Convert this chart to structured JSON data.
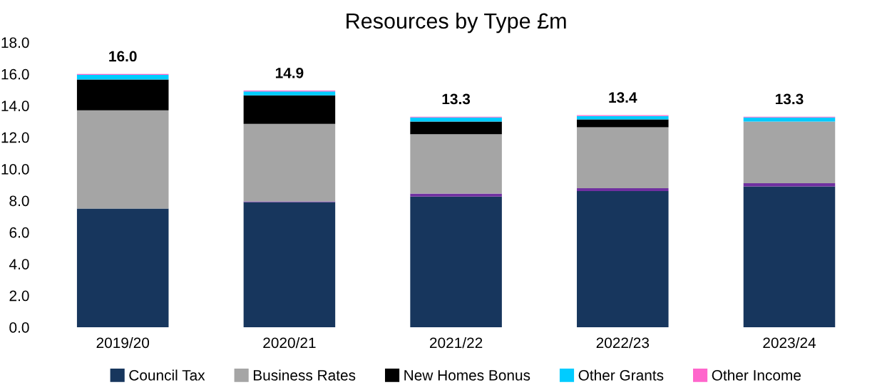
{
  "chart_data": {
    "type": "bar",
    "title": "Resources by Type £m",
    "stacked": true,
    "categories": [
      "2019/20",
      "2020/21",
      "2021/22",
      "2022/23",
      "2023/24"
    ],
    "series": [
      {
        "name": "Council Tax",
        "color": "#17365d",
        "values": [
          7.5,
          7.9,
          8.25,
          8.6,
          8.9
        ]
      },
      {
        "color": "#7030a0",
        "values": [
          0,
          0.05,
          0.2,
          0.18,
          0.2
        ]
      },
      {
        "name": "Business Rates",
        "color": "#a5a5a5",
        "values": [
          6.2,
          4.9,
          3.75,
          3.85,
          3.9
        ]
      },
      {
        "name": "New Homes Bonus",
        "color": "#000000",
        "values": [
          1.95,
          1.8,
          0.8,
          0.5,
          0
        ]
      },
      {
        "name": "Other Grants",
        "color": "#00ccff",
        "values": [
          0.3,
          0.25,
          0.25,
          0.22,
          0.25
        ]
      },
      {
        "name": "Other Income",
        "color": "#ff66cc",
        "values": [
          0.05,
          0.05,
          0.05,
          0.05,
          0.05
        ]
      }
    ],
    "totals": [
      "16.0",
      "14.9",
      "13.3",
      "13.4",
      "13.3"
    ],
    "ylim": [
      0,
      18
    ],
    "yticks": [
      {
        "value": 0,
        "label": "0.0"
      },
      {
        "value": 2,
        "label": "2.0"
      },
      {
        "value": 4,
        "label": "4.0"
      },
      {
        "value": 6,
        "label": "6.0"
      },
      {
        "value": 8,
        "label": "8.0"
      },
      {
        "value": 10,
        "label": "10.0"
      },
      {
        "value": 12,
        "label": "12.0"
      },
      {
        "value": 14,
        "label": "14.0"
      },
      {
        "value": 16,
        "label": "16.0"
      },
      {
        "value": 18,
        "label": "18.0"
      }
    ],
    "grid": false,
    "legend": "bottom"
  }
}
